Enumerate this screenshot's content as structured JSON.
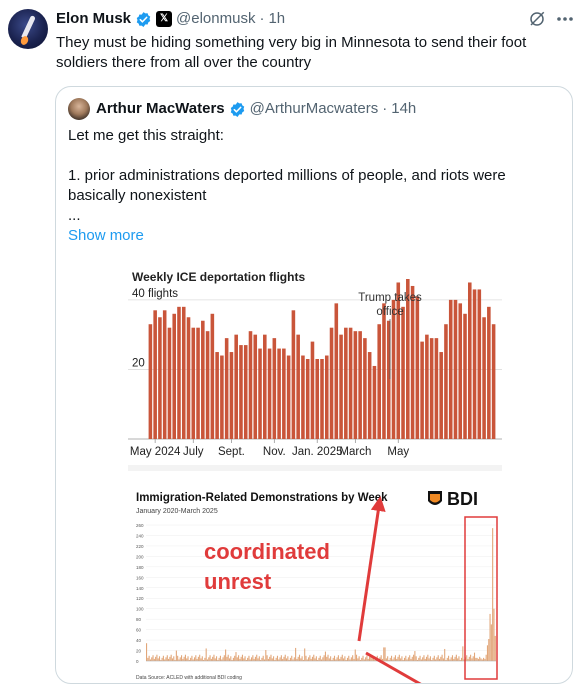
{
  "tweet": {
    "name": "Elon Musk",
    "handle": "@elonmusk",
    "dot": "·",
    "time": "1h",
    "x_badge": "𝕏",
    "text": "They must be hiding something very big in Minnesota to send their foot soldiers there from all over the country"
  },
  "quote": {
    "name": "Arthur MacWaters",
    "handle": "@ArthurMacwaters",
    "dot": "·",
    "time": "14h",
    "lines": [
      "Let me get this straight:",
      "",
      "1. prior administrations deported millions of people, and riots were basically nonexistent",
      "..."
    ],
    "show_more": "Show more"
  },
  "icons": {
    "verified": "verified-badge-icon",
    "grok": "grok-icon",
    "more": "more-icon"
  },
  "colors": {
    "verified_blue": "#1d9bf0",
    "bar_color": "#c9553a",
    "annotation_red": "#e03b3b",
    "bar2_color": "#e2a77a"
  },
  "chart_data": [
    {
      "type": "bar",
      "title": "Weekly ICE deportation flights",
      "y_tick_labels": [
        "40 flights",
        "20"
      ],
      "y_ticks": [
        40,
        20
      ],
      "ylim": [
        0,
        46
      ],
      "x_tick_labels": [
        "May 2024",
        "July",
        "Sept.",
        "Nov.",
        "Jan. 2025",
        "March",
        "May"
      ],
      "x_tick_positions": [
        1,
        9,
        17,
        26,
        35,
        43,
        52
      ],
      "annotation": "Trump takes office",
      "annotation_index": 37,
      "values": [
        33,
        37,
        35,
        37,
        32,
        36,
        38,
        38,
        35,
        32,
        32,
        34,
        31,
        36,
        25,
        24,
        29,
        25,
        30,
        27,
        27,
        31,
        30,
        26,
        30,
        26,
        29,
        26,
        26,
        24,
        37,
        30,
        24,
        23,
        28,
        23,
        23,
        24,
        32,
        39,
        30,
        32,
        32,
        31,
        31,
        29,
        25,
        21,
        33,
        39,
        34,
        40,
        45,
        38,
        46,
        44,
        41,
        28,
        30,
        29,
        29,
        25,
        33,
        40,
        40,
        39,
        36,
        45,
        43,
        43,
        35,
        38,
        33
      ]
    },
    {
      "type": "bar",
      "title": "Immigration-Related Demonstrations by Week",
      "subtitle": "January 2020-March 2025",
      "logo": "BDI",
      "y_tick_labels": [
        "260",
        "240",
        "220",
        "200",
        "180",
        "160",
        "140",
        "120",
        "100",
        "80",
        "60",
        "40",
        "20",
        "0"
      ],
      "source": "Data Source: ACLED with additional BDI coding",
      "annotation": "coordinated unrest"
    }
  ]
}
